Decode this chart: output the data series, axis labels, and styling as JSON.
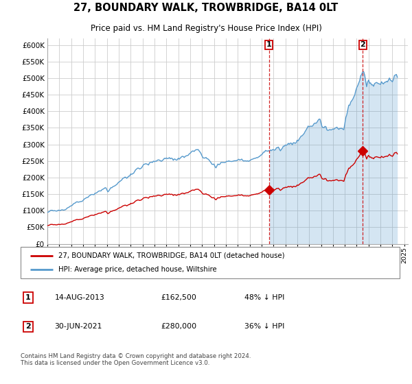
{
  "title": "27, BOUNDARY WALK, TROWBRIDGE, BA14 0LT",
  "subtitle": "Price paid vs. HM Land Registry's House Price Index (HPI)",
  "legend_line1": "27, BOUNDARY WALK, TROWBRIDGE, BA14 0LT (detached house)",
  "legend_line2": "HPI: Average price, detached house, Wiltshire",
  "annotation1_label": "1",
  "annotation1_date": "14-AUG-2013",
  "annotation1_price": "£162,500",
  "annotation1_pct": "48% ↓ HPI",
  "annotation2_label": "2",
  "annotation2_date": "30-JUN-2021",
  "annotation2_price": "£280,000",
  "annotation2_pct": "36% ↓ HPI",
  "footnote": "Contains HM Land Registry data © Crown copyright and database right 2024.\nThis data is licensed under the Open Government Licence v3.0.",
  "hpi_color": "#5599cc",
  "hpi_fill_color": "#ddeeff",
  "price_color": "#cc0000",
  "vline_color": "#cc0000",
  "bg_plot": "#ffffff",
  "grid_color": "#cccccc",
  "ylim": [
    0,
    620000
  ],
  "yticks": [
    0,
    50000,
    100000,
    150000,
    200000,
    250000,
    300000,
    350000,
    400000,
    450000,
    500000,
    550000,
    600000
  ],
  "sale1_x": 2013.617,
  "sale1_y": 162500,
  "sale2_x": 2021.495,
  "sale2_y": 280000,
  "xmin": 1995,
  "xmax": 2025.3
}
